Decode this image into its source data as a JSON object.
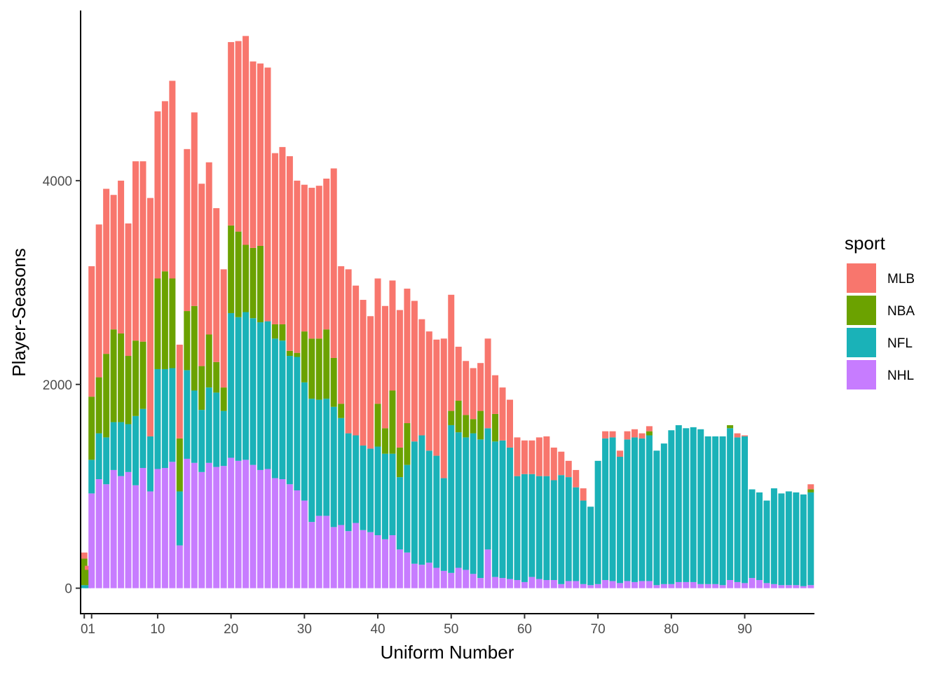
{
  "chart_data": {
    "type": "bar",
    "stacked": true,
    "xlabel": "Uniform Number",
    "ylabel": "Player-Seasons",
    "legend_title": "sport",
    "legend_position": "right",
    "grid": false,
    "xlim": [
      -0.5,
      99.5
    ],
    "ylim": [
      -250,
      5670
    ],
    "x_ticks": [
      0,
      1,
      10,
      20,
      30,
      40,
      50,
      60,
      70,
      80,
      90
    ],
    "x_tick_labels": [
      "0",
      "1",
      "10",
      "20",
      "30",
      "40",
      "50",
      "60",
      "70",
      "80",
      "90"
    ],
    "y_ticks": [
      0,
      2000,
      4000
    ],
    "y_tick_labels": [
      "0",
      "2000",
      "4000"
    ],
    "x": [
      0,
      0.5,
      1,
      2,
      3,
      4,
      5,
      6,
      7,
      8,
      9,
      10,
      11,
      12,
      13,
      14,
      15,
      16,
      17,
      18,
      19,
      20,
      21,
      22,
      23,
      24,
      25,
      26,
      27,
      28,
      29,
      30,
      31,
      32,
      33,
      34,
      35,
      36,
      37,
      38,
      39,
      40,
      41,
      42,
      43,
      44,
      45,
      46,
      47,
      48,
      49,
      50,
      51,
      52,
      53,
      54,
      55,
      56,
      57,
      58,
      59,
      60,
      61,
      62,
      63,
      64,
      65,
      66,
      67,
      68,
      69,
      70,
      71,
      72,
      73,
      74,
      75,
      76,
      77,
      78,
      79,
      80,
      81,
      82,
      83,
      84,
      85,
      86,
      87,
      88,
      89,
      90,
      91,
      92,
      93,
      94,
      95,
      96,
      97,
      98,
      99
    ],
    "series": [
      {
        "name": "NHL",
        "color": "#C77CFF",
        "values": [
          0,
          0,
          930,
          1070,
          1020,
          1160,
          1100,
          1140,
          1010,
          1180,
          950,
          1170,
          1180,
          1240,
          420,
          1270,
          1230,
          1140,
          1230,
          1190,
          1200,
          1280,
          1250,
          1260,
          1210,
          1160,
          1170,
          1080,
          1070,
          1020,
          960,
          860,
          650,
          710,
          710,
          600,
          620,
          560,
          640,
          570,
          550,
          520,
          480,
          520,
          380,
          350,
          240,
          230,
          250,
          200,
          170,
          150,
          200,
          180,
          140,
          100,
          380,
          110,
          100,
          90,
          80,
          60,
          110,
          90,
          80,
          80,
          40,
          70,
          70,
          40,
          30,
          40,
          80,
          70,
          50,
          70,
          60,
          70,
          70,
          30,
          40,
          40,
          60,
          60,
          60,
          40,
          40,
          40,
          30,
          80,
          60,
          50,
          100,
          80,
          50,
          40,
          30,
          30,
          30,
          20,
          30
        ]
      },
      {
        "name": "NFL",
        "color": "#1AB2B8",
        "values": [
          30,
          30,
          330,
          450,
          460,
          470,
          530,
          470,
          680,
          580,
          540,
          980,
          970,
          920,
          530,
          870,
          710,
          610,
          740,
          730,
          540,
          1420,
          1410,
          1450,
          1440,
          1450,
          1450,
          1370,
          1360,
          1260,
          1310,
          1160,
          1210,
          1140,
          1150,
          1180,
          1050,
          960,
          860,
          830,
          820,
          870,
          840,
          800,
          710,
          860,
          1200,
          1270,
          1100,
          1100,
          910,
          1450,
          1330,
          1300,
          1380,
          1360,
          1190,
          1330,
          1350,
          1290,
          1020,
          1060,
          1010,
          1010,
          1020,
          980,
          1070,
          1020,
          920,
          820,
          770,
          1210,
          1390,
          1410,
          1240,
          1390,
          1420,
          1400,
          1430,
          1320,
          1380,
          1510,
          1540,
          1510,
          1520,
          1520,
          1450,
          1450,
          1460,
          1490,
          1420,
          1440,
          870,
          860,
          810,
          940,
          900,
          920,
          910,
          900,
          910
        ]
      },
      {
        "name": "NBA",
        "color": "#6BA200",
        "values": [
          260,
          150,
          620,
          550,
          820,
          910,
          870,
          670,
          740,
          660,
          0,
          890,
          960,
          880,
          520,
          580,
          830,
          430,
          520,
          300,
          230,
          860,
          840,
          660,
          690,
          750,
          0,
          140,
          160,
          50,
          40,
          500,
          590,
          600,
          680,
          480,
          140,
          0,
          0,
          0,
          0,
          420,
          250,
          620,
          290,
          410,
          0,
          0,
          0,
          0,
          0,
          140,
          310,
          220,
          140,
          280,
          0,
          270,
          0,
          0,
          0,
          0,
          0,
          0,
          0,
          0,
          0,
          0,
          0,
          0,
          0,
          0,
          0,
          0,
          0,
          0,
          0,
          0,
          40,
          0,
          0,
          0,
          0,
          0,
          0,
          0,
          0,
          0,
          0,
          30,
          0,
          0,
          0,
          0,
          0,
          0,
          0,
          0,
          0,
          0,
          30
        ]
      },
      {
        "name": "MLB",
        "color": "#F8766D",
        "values": [
          60,
          40,
          1280,
          1500,
          1620,
          1320,
          1500,
          1300,
          1760,
          1770,
          2340,
          1640,
          1670,
          1940,
          920,
          1590,
          1900,
          1790,
          1690,
          1510,
          1160,
          1800,
          1870,
          2050,
          1830,
          1790,
          2490,
          1680,
          1740,
          1910,
          1690,
          1440,
          1480,
          1500,
          1480,
          1860,
          1350,
          1610,
          1470,
          1430,
          1300,
          1230,
          1200,
          1080,
          1350,
          1320,
          1380,
          1140,
          1170,
          1140,
          1370,
          1140,
          530,
          530,
          500,
          470,
          880,
          380,
          520,
          470,
          380,
          330,
          330,
          380,
          390,
          320,
          230,
          160,
          170,
          120,
          0,
          0,
          70,
          60,
          60,
          80,
          80,
          50,
          50,
          0,
          0,
          0,
          0,
          0,
          0,
          0,
          0,
          0,
          0,
          0,
          40,
          10,
          0,
          0,
          0,
          0,
          0,
          0,
          0,
          0,
          50
        ]
      }
    ]
  }
}
